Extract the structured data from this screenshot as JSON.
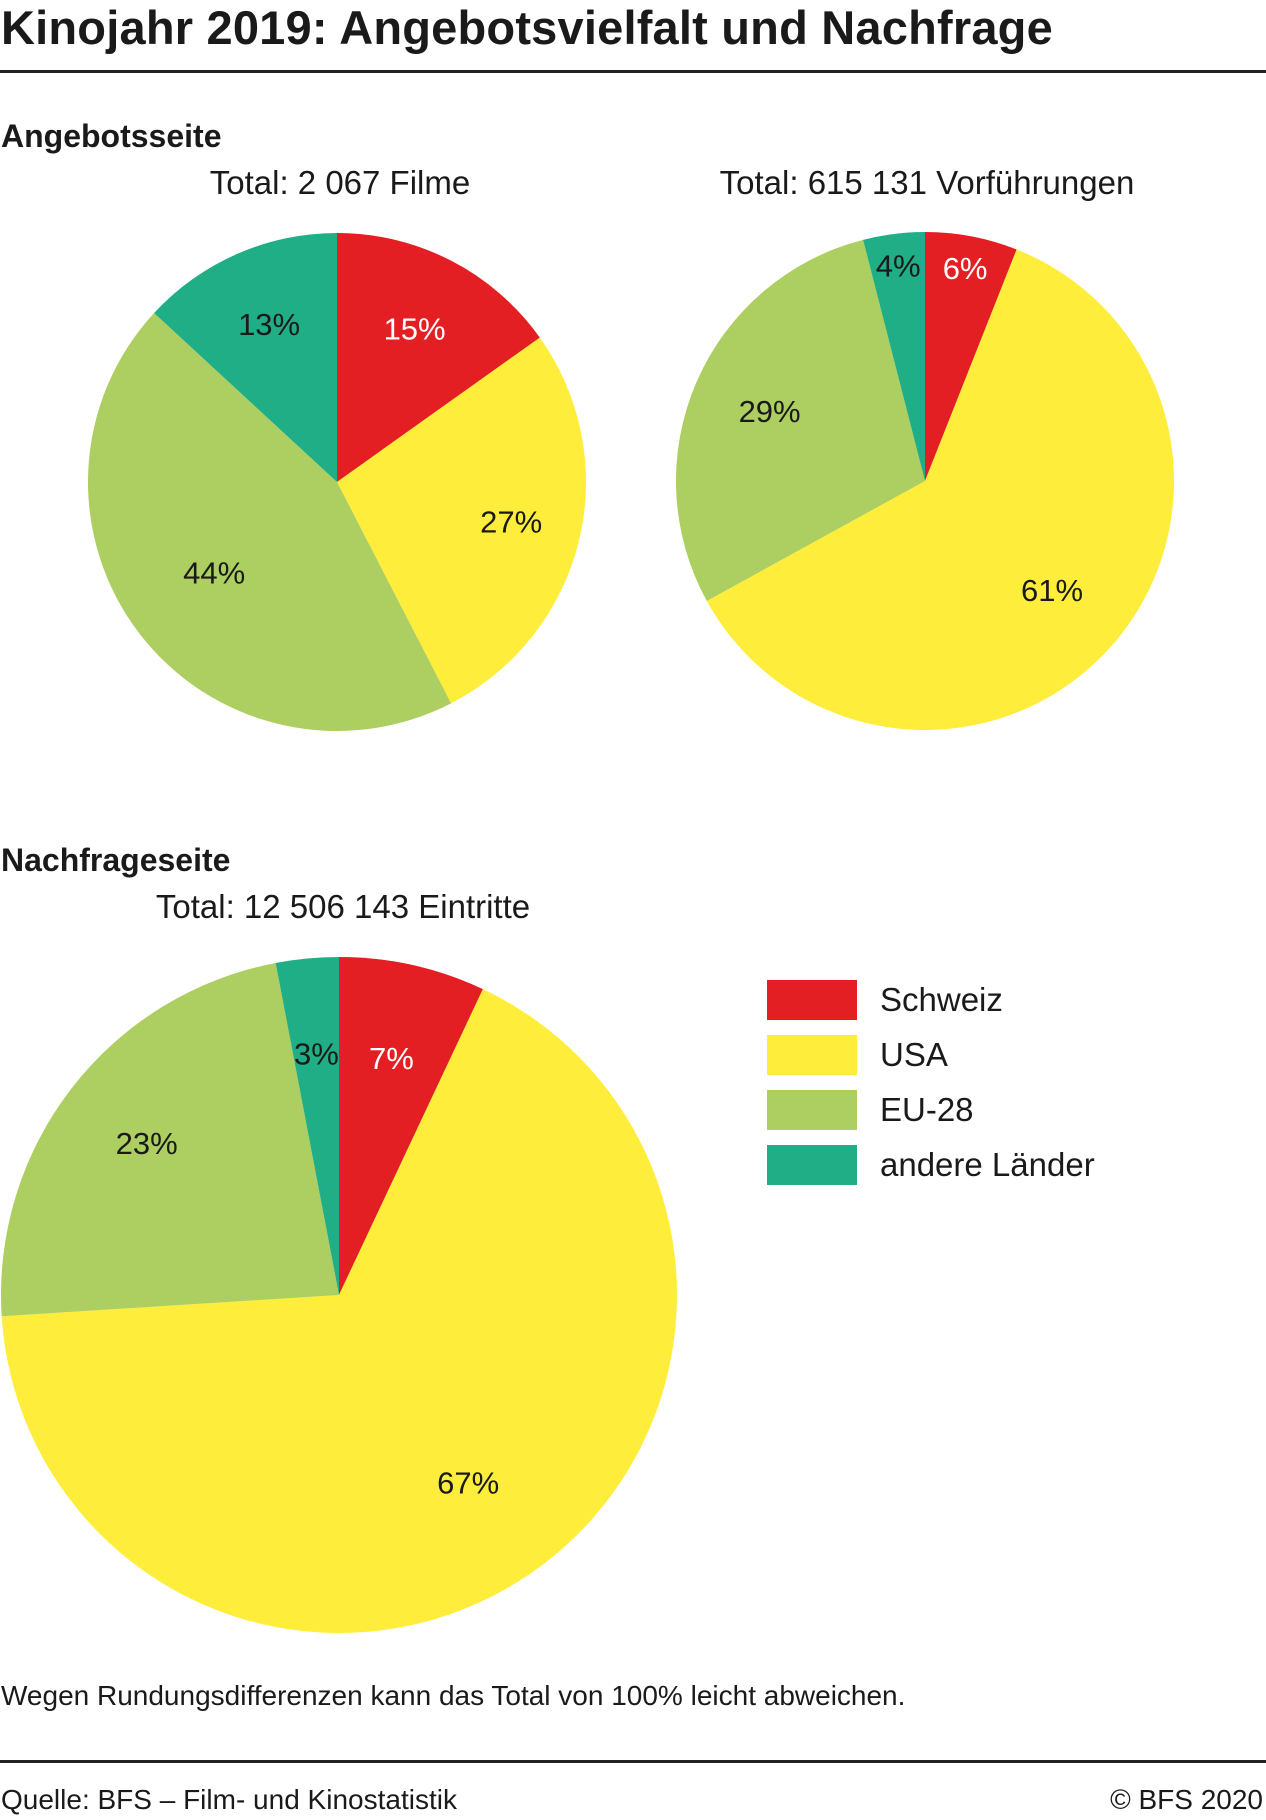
{
  "title": "Kinojahr 2019: Angebotsvielfalt und Nachfrage",
  "sections": {
    "supply": "Angebotsseite",
    "demand": "Nachfrageseite"
  },
  "colors": {
    "Schweiz": "#e41f23",
    "USA": "#ffed3b",
    "EU-28": "#adce60",
    "andere Länder": "#1fae85"
  },
  "legend": [
    "Schweiz",
    "USA",
    "EU-28",
    "andere Länder"
  ],
  "chart_data": [
    {
      "type": "pie",
      "title": "Total: 2 067 Filme",
      "slices": [
        {
          "label": "Schweiz",
          "value": 15
        },
        {
          "label": "USA",
          "value": 27
        },
        {
          "label": "EU-28",
          "value": 44
        },
        {
          "label": "andere Länder",
          "value": 13
        }
      ]
    },
    {
      "type": "pie",
      "title": "Total: 615 131 Vorführungen",
      "slices": [
        {
          "label": "Schweiz",
          "value": 6
        },
        {
          "label": "USA",
          "value": 61
        },
        {
          "label": "EU-28",
          "value": 29
        },
        {
          "label": "andere Länder",
          "value": 4
        }
      ]
    },
    {
      "type": "pie",
      "title": "Total: 12 506 143 Eintritte",
      "slices": [
        {
          "label": "Schweiz",
          "value": 7
        },
        {
          "label": "USA",
          "value": 67
        },
        {
          "label": "EU-28",
          "value": 23
        },
        {
          "label": "andere Länder",
          "value": 3
        }
      ]
    }
  ],
  "note": "Wegen Rundungsdifferenzen kann das Total von 100% leicht abweichen.",
  "source": "Quelle: BFS – Film- und Kinostatistik",
  "copyright": "© BFS 2020"
}
